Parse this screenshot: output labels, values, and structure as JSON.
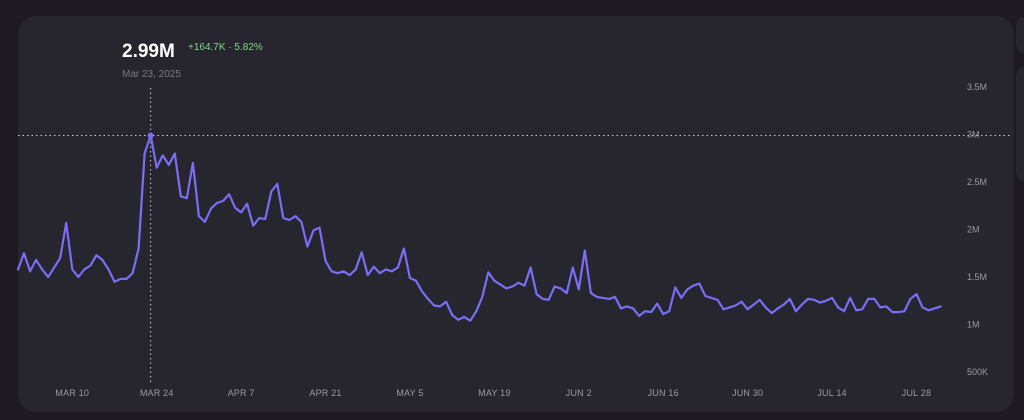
{
  "chart_data": {
    "type": "line",
    "hover": {
      "value": "2.99M",
      "change": "+164.7K · 5.82%",
      "date": "Mar 23, 2025",
      "x": "2025-03-23",
      "y": 2990000
    },
    "y_ticks": [
      {
        "label": "3.5M",
        "value": 3500000
      },
      {
        "label": "3M",
        "value": 3000000
      },
      {
        "label": "2.5M",
        "value": 2500000
      },
      {
        "label": "2M",
        "value": 2000000
      },
      {
        "label": "1.5M",
        "value": 1500000
      },
      {
        "label": "1M",
        "value": 1000000
      },
      {
        "label": "500K",
        "value": 500000
      }
    ],
    "x_ticks": [
      {
        "label": "MAR 10",
        "date": "2025-03-10"
      },
      {
        "label": "MAR 24",
        "date": "2025-03-24"
      },
      {
        "label": "APR 7",
        "date": "2025-04-07"
      },
      {
        "label": "APR 21",
        "date": "2025-04-21"
      },
      {
        "label": "MAY 5",
        "date": "2025-05-05"
      },
      {
        "label": "MAY 19",
        "date": "2025-05-19"
      },
      {
        "label": "JUN 2",
        "date": "2025-06-02"
      },
      {
        "label": "JUN 16",
        "date": "2025-06-16"
      },
      {
        "label": "JUN 30",
        "date": "2025-06-30"
      },
      {
        "label": "JUL 14",
        "date": "2025-07-14"
      },
      {
        "label": "JUL 28",
        "date": "2025-07-28"
      }
    ],
    "ylim": [
      500000,
      3500000
    ],
    "grid": false,
    "line_color": "#7b6ef6",
    "series": [
      {
        "x": [
          "2025-03-01",
          "2025-03-02",
          "2025-03-03",
          "2025-03-04",
          "2025-03-05",
          "2025-03-06",
          "2025-03-07",
          "2025-03-08",
          "2025-03-09",
          "2025-03-10",
          "2025-03-11",
          "2025-03-12",
          "2025-03-13",
          "2025-03-14",
          "2025-03-15",
          "2025-03-16",
          "2025-03-17",
          "2025-03-18",
          "2025-03-19",
          "2025-03-20",
          "2025-03-21",
          "2025-03-22",
          "2025-03-23",
          "2025-03-24",
          "2025-03-25",
          "2025-03-26",
          "2025-03-27",
          "2025-03-28",
          "2025-03-29",
          "2025-03-30",
          "2025-03-31",
          "2025-04-01",
          "2025-04-02",
          "2025-04-03",
          "2025-04-04",
          "2025-04-05",
          "2025-04-06",
          "2025-04-07",
          "2025-04-08",
          "2025-04-09",
          "2025-04-10",
          "2025-04-11",
          "2025-04-12",
          "2025-04-13",
          "2025-04-14",
          "2025-04-15",
          "2025-04-16",
          "2025-04-17",
          "2025-04-18",
          "2025-04-19",
          "2025-04-20",
          "2025-04-21",
          "2025-04-22",
          "2025-04-23",
          "2025-04-24",
          "2025-04-25",
          "2025-04-26",
          "2025-04-27",
          "2025-04-28",
          "2025-04-29",
          "2025-04-30",
          "2025-05-01",
          "2025-05-02",
          "2025-05-03",
          "2025-05-04",
          "2025-05-05",
          "2025-05-06",
          "2025-05-07",
          "2025-05-08",
          "2025-05-09",
          "2025-05-10",
          "2025-05-11",
          "2025-05-12",
          "2025-05-13",
          "2025-05-14",
          "2025-05-15",
          "2025-05-16",
          "2025-05-17",
          "2025-05-18",
          "2025-05-19",
          "2025-05-20",
          "2025-05-21",
          "2025-05-22",
          "2025-05-23",
          "2025-05-24",
          "2025-05-25",
          "2025-05-26",
          "2025-05-27",
          "2025-05-28",
          "2025-05-29",
          "2025-05-30",
          "2025-05-31",
          "2025-06-01",
          "2025-06-02",
          "2025-06-03",
          "2025-06-04",
          "2025-06-05",
          "2025-06-06",
          "2025-06-07",
          "2025-06-08",
          "2025-06-09",
          "2025-06-10",
          "2025-06-11",
          "2025-06-12",
          "2025-06-13",
          "2025-06-14",
          "2025-06-15",
          "2025-06-16",
          "2025-06-17",
          "2025-06-18",
          "2025-06-19",
          "2025-06-20",
          "2025-06-21",
          "2025-06-22",
          "2025-06-23",
          "2025-06-24",
          "2025-06-25",
          "2025-06-26",
          "2025-06-27",
          "2025-06-28",
          "2025-06-29",
          "2025-06-30",
          "2025-07-01",
          "2025-07-02",
          "2025-07-03",
          "2025-07-04",
          "2025-07-05",
          "2025-07-06",
          "2025-07-07",
          "2025-07-08",
          "2025-07-09",
          "2025-07-10",
          "2025-07-11",
          "2025-07-12",
          "2025-07-13",
          "2025-07-14",
          "2025-07-15",
          "2025-07-16",
          "2025-07-17",
          "2025-07-18",
          "2025-07-19",
          "2025-07-20",
          "2025-07-21",
          "2025-07-22",
          "2025-07-23",
          "2025-07-24",
          "2025-07-25",
          "2025-07-26",
          "2025-07-27",
          "2025-07-28",
          "2025-07-29",
          "2025-07-30",
          "2025-07-31",
          "2025-08-01"
        ],
        "y": [
          1580000,
          1750000,
          1560000,
          1680000,
          1580000,
          1500000,
          1600000,
          1700000,
          2070000,
          1580000,
          1500000,
          1580000,
          1620000,
          1730000,
          1680000,
          1580000,
          1450000,
          1480000,
          1480000,
          1540000,
          1800000,
          2800000,
          2990000,
          2650000,
          2780000,
          2680000,
          2800000,
          2350000,
          2330000,
          2700000,
          2140000,
          2080000,
          2220000,
          2280000,
          2300000,
          2370000,
          2230000,
          2180000,
          2270000,
          2040000,
          2120000,
          2110000,
          2400000,
          2480000,
          2120000,
          2100000,
          2140000,
          2080000,
          1820000,
          1990000,
          2020000,
          1670000,
          1560000,
          1540000,
          1560000,
          1520000,
          1580000,
          1760000,
          1520000,
          1610000,
          1540000,
          1580000,
          1560000,
          1600000,
          1800000,
          1490000,
          1460000,
          1350000,
          1270000,
          1200000,
          1190000,
          1240000,
          1100000,
          1050000,
          1080000,
          1040000,
          1140000,
          1290000,
          1550000,
          1460000,
          1420000,
          1380000,
          1400000,
          1440000,
          1410000,
          1600000,
          1320000,
          1270000,
          1260000,
          1400000,
          1380000,
          1330000,
          1600000,
          1370000,
          1780000,
          1330000,
          1290000,
          1280000,
          1270000,
          1290000,
          1170000,
          1190000,
          1170000,
          1090000,
          1140000,
          1130000,
          1220000,
          1110000,
          1140000,
          1390000,
          1280000,
          1370000,
          1410000,
          1430000,
          1300000,
          1280000,
          1260000,
          1160000,
          1180000,
          1200000,
          1240000,
          1160000,
          1210000,
          1260000,
          1180000,
          1120000,
          1170000,
          1210000,
          1270000,
          1140000,
          1210000,
          1270000,
          1260000,
          1230000,
          1250000,
          1280000,
          1180000,
          1140000,
          1280000,
          1150000,
          1160000,
          1270000,
          1270000,
          1180000,
          1190000,
          1130000,
          1130000,
          1140000,
          1270000,
          1320000,
          1180000,
          1150000,
          1170000,
          1190000
        ]
      }
    ]
  }
}
